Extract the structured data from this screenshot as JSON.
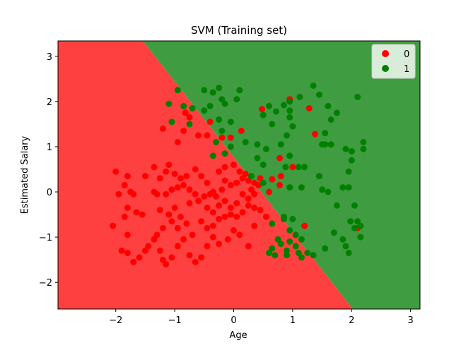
{
  "chart_data": {
    "type": "scatter",
    "title": "SVM (Training set)",
    "xlabel": "Age",
    "ylabel": "Estimated Salary",
    "xlim": [
      -2.98,
      3.16
    ],
    "ylim": [
      -2.59,
      3.34
    ],
    "xticks": [
      -2,
      -1,
      0,
      1,
      2,
      3
    ],
    "xtick_labels": [
      "−2",
      "−1",
      "0",
      "1",
      "2",
      "3"
    ],
    "yticks": [
      -2,
      -1,
      0,
      1,
      2,
      3
    ],
    "ytick_labels": [
      "−2",
      "−1",
      "0",
      "1",
      "2",
      "3"
    ],
    "grid": false,
    "legend_position": "top-right",
    "decision_boundary": {
      "points": [
        [
          -1.54,
          3.34
        ],
        [
          2.02,
          -2.59
        ]
      ],
      "region_colors": {
        "0": "#ff4040",
        "1": "#409c40"
      }
    },
    "series": [
      {
        "name": "0",
        "color": "#ff0000",
        "points": [
          [
            -1.2,
            1.4
          ],
          [
            -0.82,
            1.75
          ],
          [
            -0.75,
            1.65
          ],
          [
            -0.85,
            1.35
          ],
          [
            -0.95,
            1.1
          ],
          [
            -0.6,
            1.25
          ],
          [
            -0.4,
            1.55
          ],
          [
            -0.45,
            1.25
          ],
          [
            -0.2,
            1.2
          ],
          [
            -0.05,
            1.2
          ],
          [
            0.13,
            1.35
          ],
          [
            0.48,
            1.83
          ],
          [
            0.95,
            2.05
          ],
          [
            1.28,
            1.85
          ],
          [
            1.38,
            1.28
          ],
          [
            0.78,
            0.75
          ],
          [
            0.8,
            0.35
          ],
          [
            0.78,
            0.15
          ],
          [
            1.0,
            0.55
          ],
          [
            0.65,
            0.28
          ],
          [
            1.2,
            -0.75
          ],
          [
            2.1,
            -0.8
          ],
          [
            -2.0,
            0.45
          ],
          [
            -1.8,
            0.35
          ],
          [
            -1.85,
            0.15
          ],
          [
            -1.95,
            -0.05
          ],
          [
            -1.75,
            0.0
          ],
          [
            -1.7,
            -0.05
          ],
          [
            -1.8,
            -0.35
          ],
          [
            -1.65,
            -0.45
          ],
          [
            -1.55,
            -0.5
          ],
          [
            -1.85,
            -0.55
          ],
          [
            -1.8,
            -0.95
          ],
          [
            -2.05,
            -0.75
          ],
          [
            -1.5,
            0.35
          ],
          [
            -1.35,
            0.55
          ],
          [
            -1.25,
            0.3
          ],
          [
            -1.15,
            0.45
          ],
          [
            -1.1,
            0.6
          ],
          [
            -1.0,
            0.4
          ],
          [
            -0.9,
            0.3
          ],
          [
            -0.8,
            0.35
          ],
          [
            -0.65,
            0.5
          ],
          [
            -0.55,
            0.35
          ],
          [
            -0.45,
            0.2
          ],
          [
            -0.35,
            0.0
          ],
          [
            -1.35,
            0.0
          ],
          [
            -1.3,
            -0.05
          ],
          [
            -1.15,
            -0.05
          ],
          [
            -1.05,
            0.05
          ],
          [
            -0.95,
            0.1
          ],
          [
            -0.85,
            0.15
          ],
          [
            -0.75,
            0.05
          ],
          [
            -0.65,
            -0.05
          ],
          [
            -0.5,
            -0.1
          ],
          [
            -0.4,
            -0.05
          ],
          [
            -0.3,
            -0.1
          ],
          [
            -0.2,
            0.05
          ],
          [
            -0.15,
            0.25
          ],
          [
            -0.05,
            0.15
          ],
          [
            0.05,
            0.2
          ],
          [
            0.15,
            0.3
          ],
          [
            0.25,
            0.25
          ],
          [
            0.35,
            0.2
          ],
          [
            -0.25,
            0.45
          ],
          [
            -0.15,
            0.55
          ],
          [
            0.0,
            0.6
          ],
          [
            0.1,
            0.45
          ],
          [
            0.2,
            0.4
          ],
          [
            0.45,
            0.3
          ],
          [
            -1.25,
            -0.4
          ],
          [
            -1.1,
            -0.5
          ],
          [
            -1.0,
            -0.35
          ],
          [
            -0.9,
            -0.55
          ],
          [
            -0.75,
            -0.25
          ],
          [
            -0.6,
            -0.2
          ],
          [
            -0.45,
            -0.35
          ],
          [
            -0.35,
            -0.45
          ],
          [
            -0.25,
            -0.3
          ],
          [
            -0.15,
            -0.2
          ],
          [
            -0.05,
            -0.35
          ],
          [
            0.05,
            -0.25
          ],
          [
            0.15,
            -0.05
          ],
          [
            0.25,
            -0.15
          ],
          [
            0.35,
            -0.05
          ],
          [
            0.3,
            0.05
          ],
          [
            0.42,
            0.15
          ],
          [
            0.6,
            0.0
          ],
          [
            -1.3,
            -0.95
          ],
          [
            -1.2,
            -0.8
          ],
          [
            -1.05,
            -0.65
          ],
          [
            -0.95,
            -0.8
          ],
          [
            -0.8,
            -0.7
          ],
          [
            -0.7,
            -0.95
          ],
          [
            -0.55,
            -0.65
          ],
          [
            -0.45,
            -0.8
          ],
          [
            -0.35,
            -0.75
          ],
          [
            -0.25,
            -0.6
          ],
          [
            -0.15,
            -0.55
          ],
          [
            -0.05,
            -0.5
          ],
          [
            0.05,
            -0.55
          ],
          [
            0.15,
            -0.45
          ],
          [
            0.25,
            -0.3
          ],
          [
            0.35,
            -0.35
          ],
          [
            0.45,
            -0.4
          ],
          [
            0.55,
            -0.55
          ],
          [
            -1.9,
            -1.3
          ],
          [
            -1.8,
            -1.35
          ],
          [
            -1.7,
            -1.55
          ],
          [
            -1.6,
            -1.45
          ],
          [
            -1.5,
            -1.3
          ],
          [
            -1.45,
            -1.2
          ],
          [
            -1.35,
            -1.05
          ],
          [
            -1.25,
            -1.3
          ],
          [
            -1.2,
            -1.5
          ],
          [
            -1.15,
            -1.6
          ],
          [
            -1.05,
            -1.45
          ],
          [
            -0.95,
            -1.2
          ],
          [
            -0.85,
            -1.05
          ],
          [
            -0.75,
            -1.4
          ],
          [
            -0.65,
            -1.55
          ],
          [
            -0.55,
            -1.45
          ],
          [
            -0.45,
            -1.2
          ],
          [
            -0.35,
            -1.0
          ],
          [
            -0.25,
            -1.15
          ],
          [
            -0.1,
            -1.05
          ],
          [
            0.0,
            -0.85
          ],
          [
            0.1,
            -0.95
          ],
          [
            0.25,
            -1.2
          ],
          [
            0.35,
            -0.75
          ]
        ]
      },
      {
        "name": "1",
        "color": "#008000",
        "points": [
          [
            -0.95,
            2.25
          ],
          [
            -1.1,
            1.95
          ],
          [
            -0.85,
            1.9
          ],
          [
            -0.7,
            1.85
          ],
          [
            -1.05,
            1.55
          ],
          [
            -0.75,
            1.5
          ],
          [
            -0.5,
            2.25
          ],
          [
            -0.35,
            2.2
          ],
          [
            -0.25,
            2.3
          ],
          [
            -0.2,
            2.05
          ],
          [
            0.05,
            2.05
          ],
          [
            0.1,
            2.25
          ],
          [
            -0.5,
            1.8
          ],
          [
            -0.4,
            1.9
          ],
          [
            -0.15,
            1.95
          ],
          [
            -0.25,
            1.6
          ],
          [
            -0.2,
            1.35
          ],
          [
            -0.05,
            1.55
          ],
          [
            -0.3,
            1.1
          ],
          [
            -0.35,
            0.8
          ],
          [
            -0.15,
            0.85
          ],
          [
            -0.05,
            1.0
          ],
          [
            0.2,
            1.1
          ],
          [
            0.4,
            1.05
          ],
          [
            0.6,
            1.9
          ],
          [
            0.72,
            1.78
          ],
          [
            0.85,
            1.92
          ],
          [
            0.95,
            2.0
          ],
          [
            1.12,
            2.1
          ],
          [
            1.35,
            2.35
          ],
          [
            1.45,
            2.15
          ],
          [
            0.95,
            1.8
          ],
          [
            0.95,
            1.65
          ],
          [
            0.5,
            1.7
          ],
          [
            0.65,
            1.5
          ],
          [
            0.9,
            1.25
          ],
          [
            1.0,
            1.45
          ],
          [
            0.4,
            0.75
          ],
          [
            0.55,
            0.95
          ],
          [
            0.8,
            1.05
          ],
          [
            0.88,
            0.55
          ],
          [
            0.95,
            0.8
          ],
          [
            1.1,
            0.55
          ],
          [
            1.2,
            0.55
          ],
          [
            0.5,
            0.6
          ],
          [
            0.3,
            0.35
          ],
          [
            0.95,
            0.1
          ],
          [
            1.15,
            0.1
          ],
          [
            0.5,
            0.2
          ],
          [
            1.5,
            1.05
          ],
          [
            1.6,
            1.9
          ],
          [
            1.75,
            1.75
          ],
          [
            1.65,
            1.6
          ],
          [
            2.1,
            2.1
          ],
          [
            2.2,
            1.1
          ],
          [
            1.55,
            1.05
          ],
          [
            1.55,
            1.3
          ],
          [
            1.65,
            1.05
          ],
          [
            1.9,
            0.95
          ],
          [
            2.0,
            0.9
          ],
          [
            2.2,
            0.95
          ],
          [
            2.0,
            0.7
          ],
          [
            1.45,
            0.35
          ],
          [
            1.95,
            0.45
          ],
          [
            1.95,
            0.1
          ],
          [
            1.85,
            0.1
          ],
          [
            1.5,
            0.05
          ],
          [
            1.6,
            0.0
          ],
          [
            1.75,
            -0.3
          ],
          [
            2.05,
            -0.3
          ],
          [
            0.85,
            -0.6
          ],
          [
            0.85,
            -0.55
          ],
          [
            0.95,
            -0.85
          ],
          [
            1.05,
            -0.95
          ],
          [
            1.15,
            -1.05
          ],
          [
            1.0,
            -0.6
          ],
          [
            0.65,
            -0.7
          ],
          [
            0.95,
            -1.1
          ],
          [
            0.9,
            -1.3
          ],
          [
            0.8,
            -1.15
          ],
          [
            0.75,
            -1.05
          ],
          [
            0.9,
            -1.4
          ],
          [
            0.65,
            -1.25
          ],
          [
            0.6,
            -1.35
          ],
          [
            0.7,
            -1.4
          ],
          [
            1.05,
            -1.2
          ],
          [
            1.1,
            -1.35
          ],
          [
            1.25,
            -1.35
          ],
          [
            1.35,
            -1.4
          ],
          [
            1.55,
            -1.25
          ],
          [
            1.7,
            -0.9
          ],
          [
            1.85,
            -1.05
          ],
          [
            1.9,
            -1.2
          ],
          [
            1.95,
            -1.35
          ],
          [
            2.05,
            -0.8
          ],
          [
            2.15,
            -0.75
          ],
          [
            2.15,
            -1.0
          ],
          [
            2.1,
            -0.65
          ],
          [
            1.98,
            -0.65
          ],
          [
            1.15,
            -1.45
          ]
        ]
      }
    ]
  }
}
